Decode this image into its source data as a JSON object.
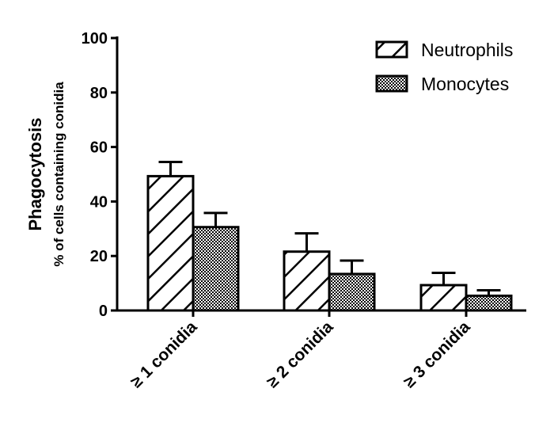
{
  "chart_data": {
    "type": "bar",
    "title": "",
    "ylabel": "Phagocytosis",
    "ylabel_sub": "% of cells containing conidia",
    "xlabel": "",
    "ylim": [
      0,
      100
    ],
    "yticks": [
      0,
      20,
      40,
      60,
      80,
      100
    ],
    "categories": [
      "≥ 1 conidia",
      "≥ 2 conidia",
      "≥ 3 conidia"
    ],
    "series": [
      {
        "name": "Neutrophils",
        "pattern": "diagonal-hatch",
        "values": [
          49.3,
          21.6,
          9.3
        ],
        "error_upper": [
          54.5,
          28.3,
          13.8
        ]
      },
      {
        "name": "Monocytes",
        "pattern": "checkerboard",
        "values": [
          30.6,
          13.4,
          5.4
        ],
        "error_upper": [
          35.8,
          18.3,
          7.4
        ]
      }
    ],
    "grid": false,
    "legend_position": "top-right",
    "colors": {
      "stroke": "#000000",
      "background": "#ffffff"
    }
  }
}
